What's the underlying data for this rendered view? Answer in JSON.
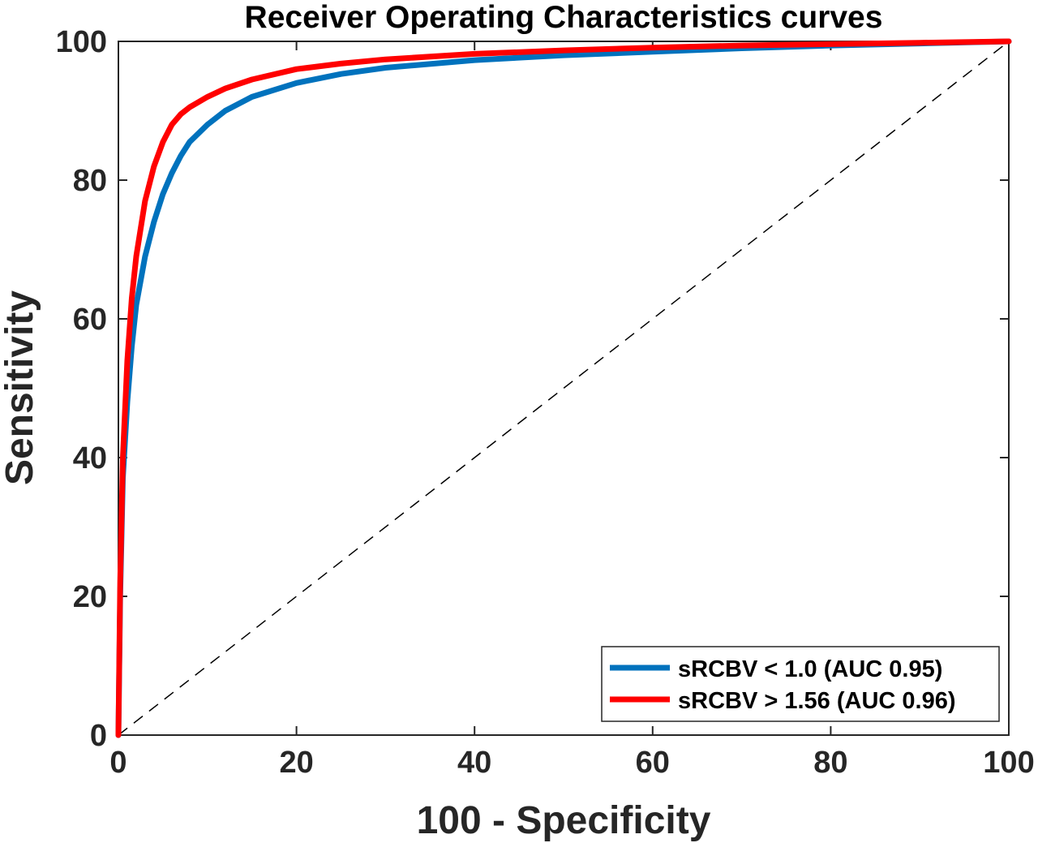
{
  "chart_data": {
    "type": "line",
    "title": "Receiver Operating Characteristics curves",
    "xlabel": "100 - Specificity",
    "ylabel": "Sensitivity",
    "xlim": [
      0,
      100
    ],
    "ylim": [
      0,
      100
    ],
    "xticks": [
      0,
      20,
      40,
      60,
      80,
      100
    ],
    "yticks": [
      0,
      20,
      40,
      60,
      80,
      100
    ],
    "xtick_labels": [
      "0",
      "20",
      "40",
      "60",
      "80",
      "100"
    ],
    "ytick_labels": [
      "0",
      "20",
      "40",
      "60",
      "80",
      "100"
    ],
    "grid": false,
    "legend_position": "bottom-right",
    "reference_line": {
      "x": [
        0,
        100
      ],
      "y": [
        0,
        100
      ],
      "style": "dashed",
      "color": "#000000"
    },
    "series": [
      {
        "name": "sRCBV < 1.0 (AUC 0.95)",
        "color": "#0072BD",
        "x": [
          0,
          0.2,
          0.5,
          1,
          1.5,
          2,
          3,
          4,
          5,
          6,
          7,
          8,
          10,
          12,
          15,
          20,
          25,
          30,
          40,
          50,
          60,
          70,
          80,
          90,
          100
        ],
        "y": [
          0,
          20,
          37,
          48,
          56,
          62,
          69,
          74,
          78,
          81,
          83.5,
          85.5,
          88,
          90,
          92,
          94,
          95.3,
          96.2,
          97.3,
          98,
          98.5,
          99,
          99.4,
          99.7,
          100
        ]
      },
      {
        "name": "sRCBV > 1.56 (AUC 0.96)",
        "color": "#FF0000",
        "x": [
          0,
          0.2,
          0.5,
          1,
          1.5,
          2,
          3,
          4,
          5,
          6,
          7,
          8,
          10,
          12,
          15,
          20,
          25,
          30,
          40,
          50,
          60,
          70,
          80,
          90,
          100
        ],
        "y": [
          0,
          22,
          40,
          54,
          63,
          69,
          77,
          82,
          85.5,
          88,
          89.5,
          90.5,
          92,
          93.2,
          94.5,
          96,
          96.8,
          97.4,
          98.2,
          98.7,
          99.1,
          99.4,
          99.6,
          99.8,
          100
        ]
      }
    ]
  }
}
